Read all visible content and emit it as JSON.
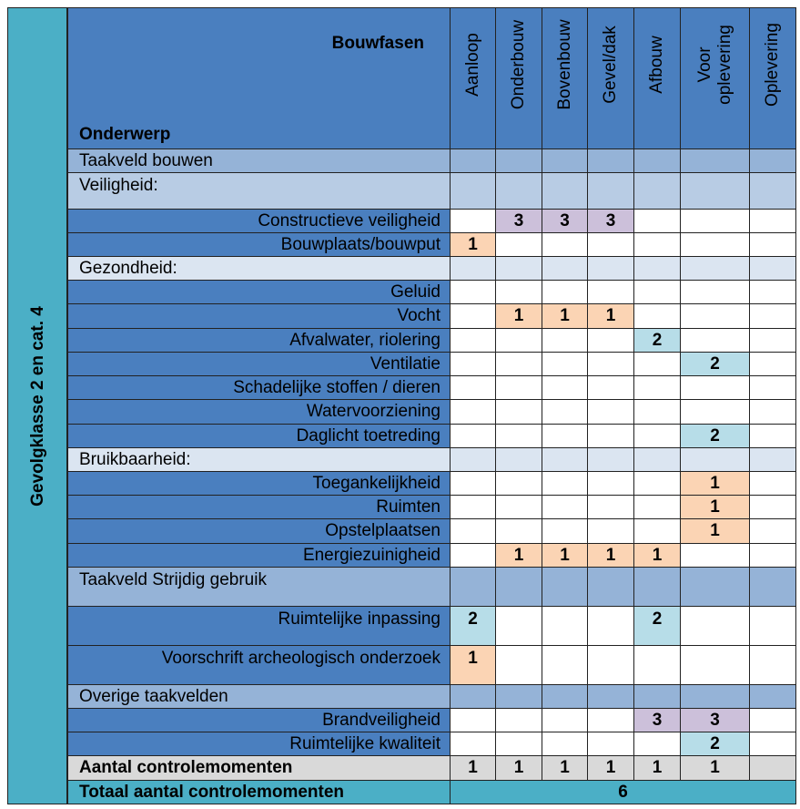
{
  "side_label": "Gevolgklasse  2 en cat. 4",
  "header": {
    "bouwfasen": "Bouwfasen",
    "onderwerp": "Onderwerp"
  },
  "phases": [
    {
      "line1": "Aanloop"
    },
    {
      "line1": "Onderbouw"
    },
    {
      "line1": "Bovenbouw"
    },
    {
      "line1": "Gevel/dak"
    },
    {
      "line1": "Afbouw"
    },
    {
      "line1": "Voor",
      "line2": "oplevering"
    },
    {
      "line1": "Oplevering"
    }
  ],
  "sections": {
    "taakveld_bouwen": "Taakveld bouwen",
    "veiligheid": "Veiligheid:",
    "gezondheid": "Gezondheid:",
    "bruikbaarheid": "Bruikbaarheid:",
    "strijdig_gebruik": "Taakveld Strijdig gebruik",
    "overige": "Overige taakvelden"
  },
  "rows": [
    {
      "label": "Constructieve veiligheid",
      "values": [
        "",
        "3",
        "3",
        "3",
        "",
        "",
        ""
      ]
    },
    {
      "label": "Bouwplaats/bouwput",
      "values": [
        "1",
        "",
        "",
        "",
        "",
        "",
        ""
      ]
    },
    {
      "label": "Geluid",
      "values": [
        "",
        "",
        "",
        "",
        "",
        "",
        ""
      ]
    },
    {
      "label": "Vocht",
      "values": [
        "",
        "1",
        "1",
        "1",
        "",
        "",
        ""
      ]
    },
    {
      "label": "Afvalwater, riolering",
      "values": [
        "",
        "",
        "",
        "",
        "2",
        "",
        ""
      ]
    },
    {
      "label": "Ventilatie",
      "values": [
        "",
        "",
        "",
        "",
        "",
        "2",
        ""
      ]
    },
    {
      "label": "Schadelijke stoffen / dieren",
      "values": [
        "",
        "",
        "",
        "",
        "",
        "",
        ""
      ]
    },
    {
      "label": "Watervoorziening",
      "values": [
        "",
        "",
        "",
        "",
        "",
        "",
        ""
      ]
    },
    {
      "label": "Daglicht toetreding",
      "values": [
        "",
        "",
        "",
        "",
        "",
        "2",
        ""
      ]
    },
    {
      "label": "Toegankelijkheid",
      "values": [
        "",
        "",
        "",
        "",
        "",
        "1",
        ""
      ]
    },
    {
      "label": "Ruimten",
      "values": [
        "",
        "",
        "",
        "",
        "",
        "1",
        ""
      ]
    },
    {
      "label": "Opstelplaatsen",
      "values": [
        "",
        "",
        "",
        "",
        "",
        "1",
        ""
      ]
    },
    {
      "label": "Energiezuinigheid",
      "values": [
        "",
        "1",
        "1",
        "1",
        "1",
        "",
        ""
      ]
    },
    {
      "label": "Ruimtelijke inpassing",
      "values": [
        "2",
        "",
        "",
        "",
        "2",
        "",
        ""
      ]
    },
    {
      "label": "Voorschrift archeologisch onderzoek",
      "values": [
        "1",
        "",
        "",
        "",
        "",
        "",
        ""
      ]
    },
    {
      "label": "Brandveiligheid",
      "values": [
        "",
        "",
        "",
        "",
        "3",
        "3",
        ""
      ]
    },
    {
      "label": "Ruimtelijke kwaliteit",
      "values": [
        "",
        "",
        "",
        "",
        "",
        "2",
        ""
      ]
    }
  ],
  "totals": {
    "label": "Aantal controlemomenten",
    "values": [
      "1",
      "1",
      "1",
      "1",
      "1",
      "1",
      ""
    ],
    "grand_label": "Totaal aantal controlemomenten",
    "grand_value": "6"
  },
  "colors": {
    "side": "#4BAFC6",
    "header": "#4A7FBF",
    "score_1": "#FBD4B4",
    "score_2": "#B7DDE8",
    "score_3": "#CCC0DA"
  }
}
